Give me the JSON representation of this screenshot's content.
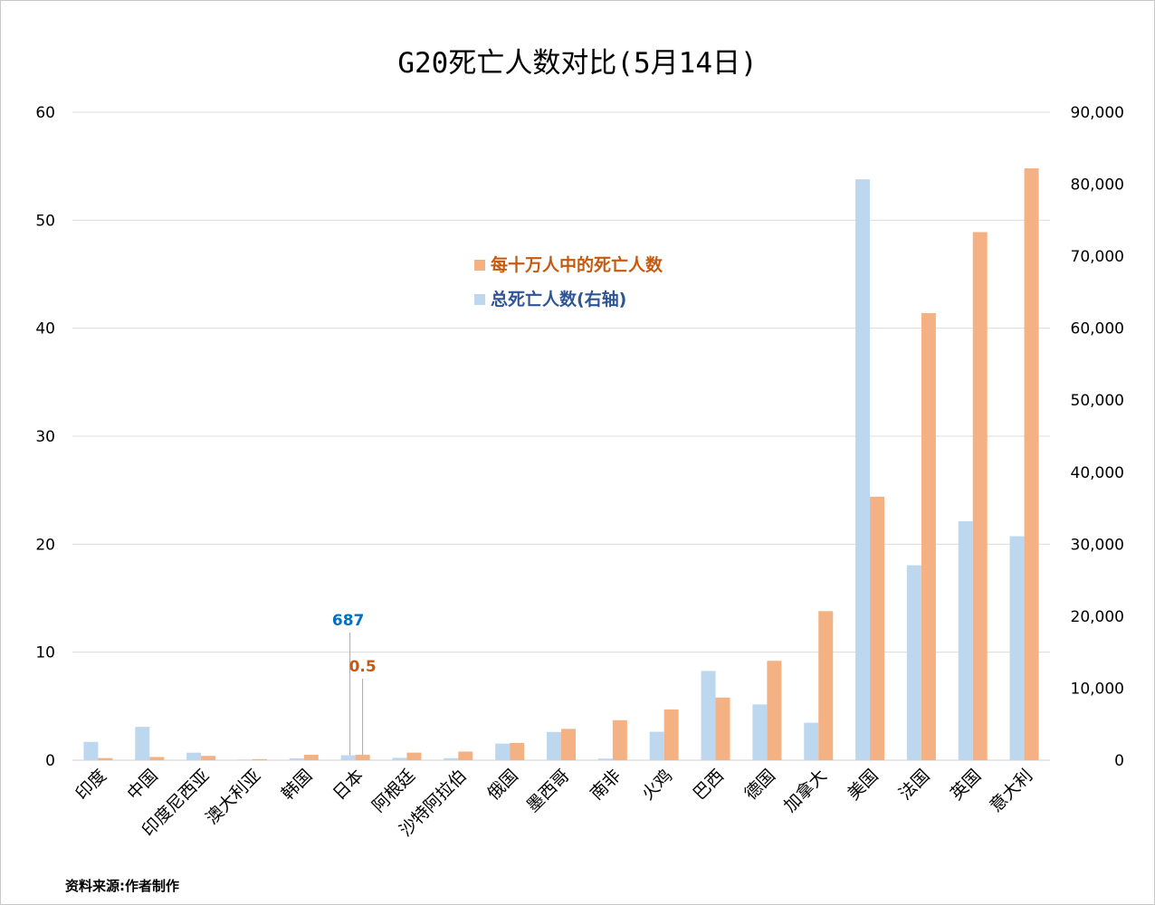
{
  "chart_data": {
    "type": "bar",
    "title": "G20死亡人数对比(5月14日)",
    "source_note": "资料来源:作者制作",
    "categories": [
      "印度",
      "中国",
      "印度尼西亚",
      "澳大利亚",
      "韩国",
      "日本",
      "阿根廷",
      "沙特阿拉伯",
      "俄国",
      "墨西哥",
      "南非",
      "火鸡",
      "巴西",
      "德国",
      "加拿大",
      "美国",
      "法国",
      "英国",
      "意大利"
    ],
    "series": [
      {
        "name": "每十万人中的死亡人数",
        "axis": "left",
        "color": "#f4b183",
        "values": [
          0.2,
          0.3,
          0.4,
          0.1,
          0.5,
          0.5,
          0.7,
          0.8,
          1.6,
          2.9,
          3.7,
          4.7,
          5.8,
          9.2,
          13.8,
          24.4,
          41.4,
          48.9,
          54.8
        ]
      },
      {
        "name": "总死亡人数(右轴)",
        "axis": "right",
        "color": "#bdd7ee",
        "values": [
          2550,
          4633,
          1043,
          98,
          259,
          687,
          329,
          283,
          2305,
          3926,
          219,
          3952,
          12400,
          7750,
          5200,
          80682,
          27074,
          33186,
          31106
        ]
      }
    ],
    "y_left": {
      "min": 0,
      "max": 60,
      "ticks": [
        "0",
        "10",
        "20",
        "30",
        "40",
        "50",
        "60"
      ]
    },
    "y_right": {
      "min": 0,
      "max": 90000,
      "ticks": [
        "0",
        "10,000",
        "20,000",
        "30,000",
        "40,000",
        "50,000",
        "60,000",
        "70,000",
        "80,000",
        "90,000"
      ]
    },
    "grid": true,
    "legend_position": "top-center",
    "annotations": [
      {
        "text": "687",
        "category": "日本",
        "series": "总死亡人数(右轴)",
        "color": "#0070c0"
      },
      {
        "text": "0.5",
        "category": "日本",
        "series": "每十万人中的死亡人数",
        "color": "#c55a11"
      }
    ]
  }
}
